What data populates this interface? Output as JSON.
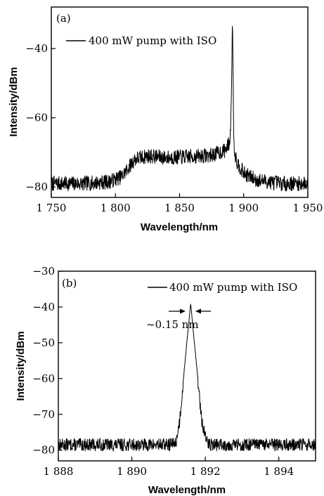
{
  "chart_data": [
    {
      "type": "line",
      "panel_label": "(a)",
      "xlabel": "Wavelength/nm",
      "ylabel": "Intensity/dBm",
      "xlim": [
        1750,
        1950
      ],
      "ylim": [
        -83,
        -28
      ],
      "xticks": [
        1750,
        1800,
        1850,
        1900,
        1950
      ],
      "xtick_labels": [
        "1 750",
        "1 800",
        "1 850",
        "1 900",
        "1 950"
      ],
      "yticks": [
        -80,
        -60,
        -40
      ],
      "ytick_labels": [
        "−80",
        "−60",
        "−40"
      ],
      "grid": false,
      "legend_position": "top-left",
      "series": [
        {
          "name": "400 mW pump with ISO",
          "color": "#000000",
          "noise": 2.2,
          "x": [
            1750,
            1775,
            1795,
            1805,
            1815,
            1825,
            1840,
            1860,
            1875,
            1885,
            1888,
            1889.5,
            1890.5,
            1891.2,
            1891.7,
            1892.2,
            1893,
            1895,
            1900,
            1910,
            1930,
            1950
          ],
          "y": [
            -79,
            -79,
            -78.5,
            -77,
            -72,
            -71,
            -71.5,
            -71.2,
            -70.8,
            -69.5,
            -68,
            -66,
            -52,
            -31,
            -45,
            -66,
            -70,
            -73,
            -76,
            -78,
            -79,
            -79
          ]
        }
      ]
    },
    {
      "type": "line",
      "panel_label": "(b)",
      "xlabel": "Wavelength/nm",
      "ylabel": "Intensity/dBm",
      "xlim": [
        1888,
        1895
      ],
      "ylim": [
        -83,
        -30
      ],
      "xticks": [
        1888,
        1890,
        1892,
        1894
      ],
      "xtick_labels": [
        "1 888",
        "1 890",
        "1 892",
        "1 894"
      ],
      "yticks": [
        -80,
        -70,
        -60,
        -50,
        -40,
        -30
      ],
      "ytick_labels": [
        "−80",
        "−70",
        "−60",
        "−50",
        "−40",
        "−30"
      ],
      "grid": false,
      "legend_position": "top-right",
      "annotation": {
        "text": "~0.15 nm",
        "x": 1891.65,
        "y": -39
      },
      "series": [
        {
          "name": "400 mW pump with ISO",
          "color": "#000000",
          "noise": 1.8,
          "x": [
            1888,
            1890,
            1891,
            1891.2,
            1891.3,
            1891.45,
            1891.6,
            1891.75,
            1891.9,
            1892.05,
            1892.2,
            1893,
            1895
          ],
          "y": [
            -78.5,
            -78.5,
            -78.5,
            -78,
            -72,
            -55,
            -39,
            -55,
            -72,
            -78,
            -78.5,
            -78.5,
            -78.5
          ]
        }
      ]
    }
  ]
}
